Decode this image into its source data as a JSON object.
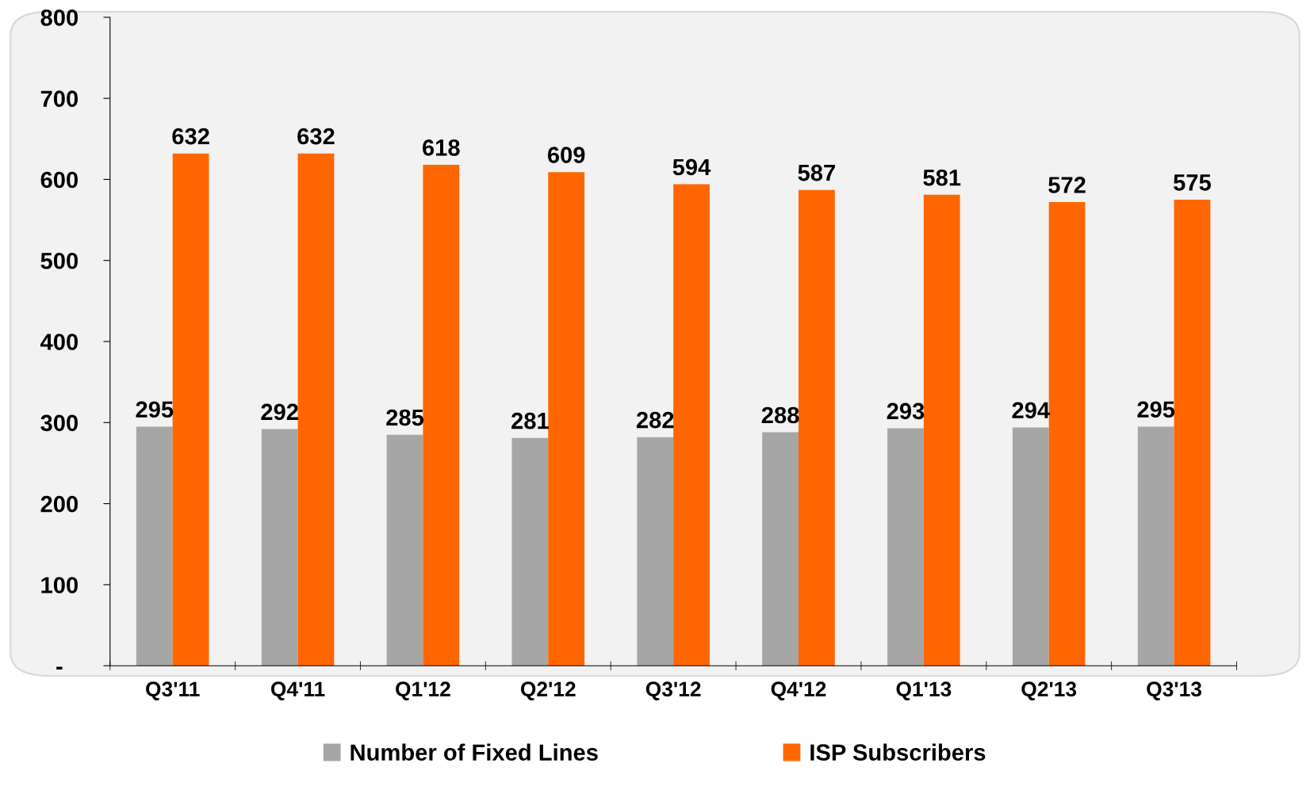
{
  "chart_data": {
    "type": "bar",
    "categories": [
      "Q3'11",
      "Q4'11",
      "Q1'12",
      "Q2'12",
      "Q3'12",
      "Q4'12",
      "Q1'13",
      "Q2'13",
      "Q3'13"
    ],
    "series": [
      {
        "name": "Number of Fixed Lines",
        "color": "#a6a6a6",
        "values": [
          295,
          292,
          285,
          281,
          282,
          288,
          293,
          294,
          295
        ]
      },
      {
        "name": "ISP Subscribers",
        "color": "#ff6600",
        "values": [
          632,
          632,
          618,
          609,
          594,
          587,
          581,
          572,
          575
        ]
      }
    ],
    "ylim": [
      0,
      800
    ],
    "yticks": [
      {
        "value": 0,
        "label": "-"
      },
      100,
      200,
      300,
      400,
      500,
      600,
      700,
      800
    ],
    "data_labels": true,
    "grid": false,
    "legend": "bottom"
  }
}
